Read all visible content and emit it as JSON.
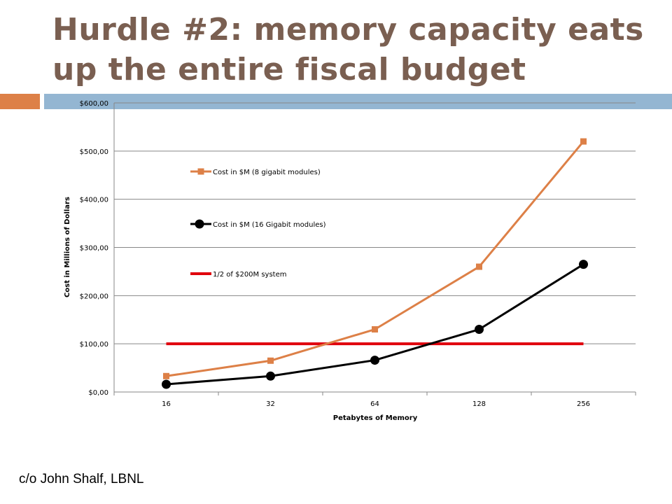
{
  "slide": {
    "title": "Hurdle #2: memory capacity eats up the entire fiscal budget",
    "credit": "c/o John Shalf, LBNL"
  },
  "colors": {
    "title": "#7a5f51",
    "accent_orange": "#dd8047",
    "accent_blue": "#94b6d2",
    "series_8gb": "#dd8047",
    "series_16gb": "#000000",
    "series_half_system": "#e0000c"
  },
  "chart_data": {
    "type": "line",
    "title": "",
    "xlabel": "Petabytes of Memory",
    "ylabel": "Cost in Millions of Dollars",
    "categories": [
      "16",
      "32",
      "64",
      "128",
      "256"
    ],
    "ylim": [
      0,
      600
    ],
    "yticks": [
      "$0,00",
      "$100,00",
      "$200,00",
      "$300,00",
      "$400,00",
      "$500,00",
      "$600,00"
    ],
    "grid": true,
    "legend_position": "top-left",
    "series": [
      {
        "name": "Cost in $M (8 gigabit modules)",
        "values": [
          33,
          65,
          130,
          260,
          520
        ],
        "color": "#dd8047",
        "marker": "square"
      },
      {
        "name": "Cost in $M (16 Gigabit modules)",
        "values": [
          16,
          33,
          66,
          130,
          265
        ],
        "color": "#000000",
        "marker": "circle"
      },
      {
        "name": "1/2 of $200M system",
        "values": [
          100,
          100,
          100,
          100,
          100
        ],
        "color": "#e0000c",
        "marker": "none"
      }
    ]
  }
}
